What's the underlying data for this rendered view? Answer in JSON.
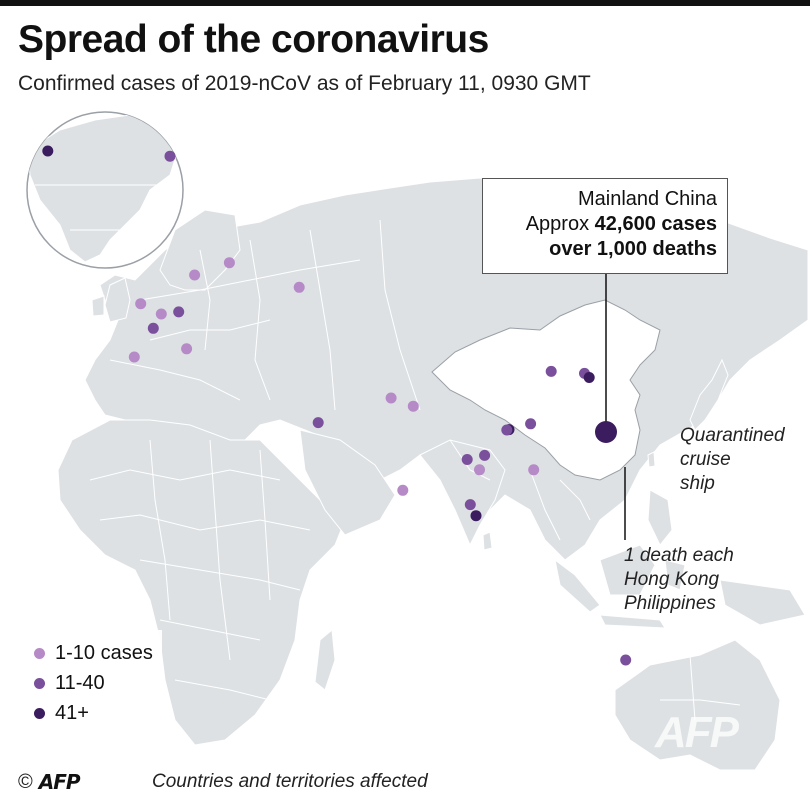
{
  "header": {
    "title": "Spread of the coronavirus",
    "subtitle": "Confirmed cases of 2019-nCoV as of February 11, 0930 GMT"
  },
  "callout": {
    "line1": "Mainland China",
    "line2_prefix": "Approx ",
    "line2_bold": "42,600 cases",
    "line3": "over 1,000 deaths"
  },
  "notes": {
    "cruise_line1": "Quarantined",
    "cruise_line2": "cruise",
    "cruise_line3": "ship",
    "deaths_line1": "1 death each",
    "deaths_line2": "Hong Kong",
    "deaths_line3": "Philippines"
  },
  "legend": {
    "items": [
      {
        "label": "1-10 cases",
        "color": "#b58ac7"
      },
      {
        "label": "11-40",
        "color": "#7a4f9b"
      },
      {
        "label": "41+",
        "color": "#3b1c5e"
      }
    ]
  },
  "footer": {
    "copyright": "©",
    "logo": "AFP",
    "note": "Countries and territories affected"
  },
  "watermark": "AFP",
  "colors": {
    "land": "#dde1e4",
    "china": "#ffffff",
    "border": "#ffffff",
    "china_border": "#9aa0a6",
    "china_dot": "#3b1c5e"
  },
  "markers": [
    {
      "name": "usa-west",
      "lat": 47,
      "lon": -122,
      "level": 3
    },
    {
      "name": "canada",
      "lat": 45,
      "lon": -75,
      "level": 2
    },
    {
      "name": "uk",
      "lat": 53,
      "lon": -2,
      "level": 1
    },
    {
      "name": "france",
      "lat": 47,
      "lon": 2,
      "level": 2
    },
    {
      "name": "belgium",
      "lat": 50.5,
      "lon": 4.5,
      "level": 1
    },
    {
      "name": "germany",
      "lat": 51,
      "lon": 10,
      "level": 2
    },
    {
      "name": "sweden",
      "lat": 60,
      "lon": 15,
      "level": 1
    },
    {
      "name": "finland",
      "lat": 63,
      "lon": 26,
      "level": 1
    },
    {
      "name": "russia",
      "lat": 57,
      "lon": 48,
      "level": 1
    },
    {
      "name": "spain",
      "lat": 40,
      "lon": -4,
      "level": 1
    },
    {
      "name": "italy",
      "lat": 42,
      "lon": 12.5,
      "level": 1
    },
    {
      "name": "uae",
      "lat": 24,
      "lon": 54,
      "level": 2
    },
    {
      "name": "nepal",
      "lat": 28,
      "lon": 84,
      "level": 1
    },
    {
      "name": "india",
      "lat": 30,
      "lon": 77,
      "level": 1
    },
    {
      "name": "sri-lanka",
      "lat": 7.5,
      "lon": 80.7,
      "level": 1
    },
    {
      "name": "south-korea",
      "lat": 36.5,
      "lon": 127.5,
      "level": 2
    },
    {
      "name": "japan",
      "lat": 36,
      "lon": 138,
      "level": 2
    },
    {
      "name": "cruise-ship",
      "lat": 35,
      "lon": 139.5,
      "level": 3
    },
    {
      "name": "taiwan",
      "lat": 23.7,
      "lon": 121,
      "level": 2
    },
    {
      "name": "hong-kong",
      "lat": 22.3,
      "lon": 114.2,
      "level": 3
    },
    {
      "name": "macau",
      "lat": 22.2,
      "lon": 113.5,
      "level": 2
    },
    {
      "name": "vietnam",
      "lat": 16,
      "lon": 106.5,
      "level": 2
    },
    {
      "name": "thailand",
      "lat": 15,
      "lon": 101,
      "level": 2
    },
    {
      "name": "cambodia",
      "lat": 12.5,
      "lon": 104.9,
      "level": 1
    },
    {
      "name": "philippines",
      "lat": 12.5,
      "lon": 122,
      "level": 1
    },
    {
      "name": "malaysia",
      "lat": 4,
      "lon": 102,
      "level": 2
    },
    {
      "name": "singapore",
      "lat": 1.3,
      "lon": 103.8,
      "level": 3
    },
    {
      "name": "australia",
      "lat": -33.9,
      "lon": 151,
      "level": 2
    }
  ]
}
